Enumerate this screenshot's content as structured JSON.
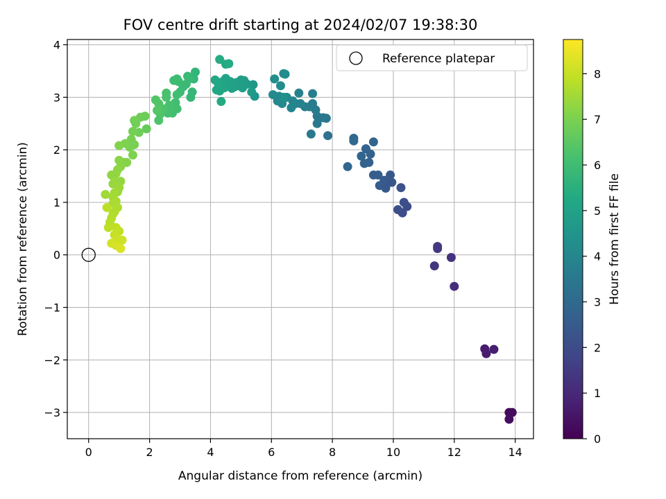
{
  "chart_data": {
    "type": "scatter",
    "title": "FOV centre drift starting at 2024/02/07 19:38:30",
    "xlabel": "Angular distance from reference (arcmin)",
    "ylabel": "Rotation from reference (arcmin)",
    "xlim": [
      -0.7,
      14.6
    ],
    "ylim": [
      -3.5,
      4.1
    ],
    "xticks": [
      0,
      2,
      4,
      6,
      8,
      10,
      12,
      14
    ],
    "yticks": [
      -3,
      -2,
      -1,
      0,
      1,
      2,
      3,
      4
    ],
    "grid": true,
    "legend": {
      "placement": "top-right",
      "label": "Reference platepar"
    },
    "reference_point": {
      "x": 0,
      "y": 0
    },
    "colorbar": {
      "label": "Hours from first FF file",
      "colormap": "viridis",
      "range": [
        0,
        8.75
      ],
      "ticks": [
        0,
        1,
        2,
        3,
        4,
        5,
        6,
        7,
        8
      ]
    },
    "points": [
      {
        "x": 13.8,
        "y": -3.0,
        "c": 0.2
      },
      {
        "x": 13.9,
        "y": -3.0,
        "c": 0.25
      },
      {
        "x": 13.8,
        "y": -3.13,
        "c": 0.3
      },
      {
        "x": 13.0,
        "y": -1.79,
        "c": 0.65
      },
      {
        "x": 13.05,
        "y": -1.88,
        "c": 0.7
      },
      {
        "x": 13.3,
        "y": -1.8,
        "c": 0.75
      },
      {
        "x": 12.0,
        "y": -0.6,
        "c": 1.15
      },
      {
        "x": 11.9,
        "y": -0.05,
        "c": 1.25
      },
      {
        "x": 11.35,
        "y": -0.21,
        "c": 1.35
      },
      {
        "x": 11.45,
        "y": 0.12,
        "c": 1.4
      },
      {
        "x": 11.45,
        "y": 0.16,
        "c": 1.45
      },
      {
        "x": 10.3,
        "y": 0.8,
        "c": 2.0
      },
      {
        "x": 10.45,
        "y": 0.92,
        "c": 2.05
      },
      {
        "x": 10.35,
        "y": 1.0,
        "c": 2.1
      },
      {
        "x": 10.15,
        "y": 0.86,
        "c": 2.1
      },
      {
        "x": 10.25,
        "y": 1.28,
        "c": 2.2
      },
      {
        "x": 9.95,
        "y": 1.38,
        "c": 2.3
      },
      {
        "x": 9.75,
        "y": 1.3,
        "c": 2.35
      },
      {
        "x": 9.9,
        "y": 1.52,
        "c": 2.4
      },
      {
        "x": 9.7,
        "y": 1.42,
        "c": 2.45
      },
      {
        "x": 9.55,
        "y": 1.32,
        "c": 2.5
      },
      {
        "x": 9.5,
        "y": 1.52,
        "c": 2.55
      },
      {
        "x": 9.35,
        "y": 1.52,
        "c": 2.6
      },
      {
        "x": 9.75,
        "y": 1.27,
        "c": 2.4
      },
      {
        "x": 9.2,
        "y": 1.76,
        "c": 2.7
      },
      {
        "x": 9.05,
        "y": 1.74,
        "c": 2.75
      },
      {
        "x": 9.25,
        "y": 1.92,
        "c": 2.75
      },
      {
        "x": 9.1,
        "y": 2.02,
        "c": 2.8
      },
      {
        "x": 8.95,
        "y": 1.88,
        "c": 2.85
      },
      {
        "x": 9.35,
        "y": 2.15,
        "c": 2.85
      },
      {
        "x": 8.7,
        "y": 2.17,
        "c": 2.95
      },
      {
        "x": 8.7,
        "y": 2.22,
        "c": 3.0
      },
      {
        "x": 8.5,
        "y": 1.68,
        "c": 2.9
      },
      {
        "x": 7.85,
        "y": 2.27,
        "c": 3.3
      },
      {
        "x": 7.8,
        "y": 2.6,
        "c": 3.4
      },
      {
        "x": 7.7,
        "y": 2.61,
        "c": 3.45
      },
      {
        "x": 7.5,
        "y": 2.5,
        "c": 3.5
      },
      {
        "x": 7.5,
        "y": 2.64,
        "c": 3.55
      },
      {
        "x": 7.3,
        "y": 2.3,
        "c": 3.55
      },
      {
        "x": 7.45,
        "y": 2.76,
        "c": 3.6
      },
      {
        "x": 7.35,
        "y": 2.88,
        "c": 3.65
      },
      {
        "x": 7.25,
        "y": 2.82,
        "c": 3.7
      },
      {
        "x": 7.1,
        "y": 2.82,
        "c": 3.75
      },
      {
        "x": 7.35,
        "y": 3.07,
        "c": 3.75
      },
      {
        "x": 6.9,
        "y": 3.08,
        "c": 3.8
      },
      {
        "x": 6.95,
        "y": 2.88,
        "c": 3.85
      },
      {
        "x": 6.8,
        "y": 2.88,
        "c": 3.9
      },
      {
        "x": 6.65,
        "y": 2.8,
        "c": 3.95
      },
      {
        "x": 6.7,
        "y": 2.93,
        "c": 3.95
      },
      {
        "x": 6.5,
        "y": 3.0,
        "c": 4.0
      },
      {
        "x": 6.35,
        "y": 2.88,
        "c": 4.05
      },
      {
        "x": 6.25,
        "y": 3.02,
        "c": 4.1
      },
      {
        "x": 6.2,
        "y": 2.93,
        "c": 4.1
      },
      {
        "x": 6.05,
        "y": 3.05,
        "c": 4.15
      },
      {
        "x": 6.3,
        "y": 3.22,
        "c": 4.2
      },
      {
        "x": 6.4,
        "y": 3.45,
        "c": 4.25
      },
      {
        "x": 6.45,
        "y": 3.44,
        "c": 4.25
      },
      {
        "x": 6.1,
        "y": 3.35,
        "c": 4.3
      },
      {
        "x": 6.4,
        "y": 3.0,
        "c": 4.3
      },
      {
        "x": 5.45,
        "y": 3.02,
        "c": 4.6
      },
      {
        "x": 5.4,
        "y": 3.24,
        "c": 4.65
      },
      {
        "x": 5.35,
        "y": 3.1,
        "c": 4.7
      },
      {
        "x": 5.2,
        "y": 3.25,
        "c": 4.75
      },
      {
        "x": 5.1,
        "y": 3.32,
        "c": 4.8
      },
      {
        "x": 5.0,
        "y": 3.33,
        "c": 4.85
      },
      {
        "x": 5.05,
        "y": 3.18,
        "c": 4.85
      },
      {
        "x": 4.95,
        "y": 3.22,
        "c": 4.9
      },
      {
        "x": 4.85,
        "y": 3.28,
        "c": 4.95
      },
      {
        "x": 4.8,
        "y": 3.2,
        "c": 4.95
      },
      {
        "x": 4.7,
        "y": 3.17,
        "c": 5.0
      },
      {
        "x": 4.65,
        "y": 3.3,
        "c": 5.0
      },
      {
        "x": 4.55,
        "y": 3.25,
        "c": 5.05
      },
      {
        "x": 4.5,
        "y": 3.36,
        "c": 5.1
      },
      {
        "x": 4.45,
        "y": 3.18,
        "c": 5.1
      },
      {
        "x": 4.4,
        "y": 3.3,
        "c": 5.15
      },
      {
        "x": 4.35,
        "y": 3.22,
        "c": 5.15
      },
      {
        "x": 4.3,
        "y": 3.12,
        "c": 5.2
      },
      {
        "x": 4.2,
        "y": 3.14,
        "c": 5.2
      },
      {
        "x": 4.15,
        "y": 3.33,
        "c": 5.25
      },
      {
        "x": 4.25,
        "y": 3.27,
        "c": 5.25
      },
      {
        "x": 4.5,
        "y": 3.63,
        "c": 5.3
      },
      {
        "x": 4.6,
        "y": 3.64,
        "c": 5.35
      },
      {
        "x": 4.3,
        "y": 3.72,
        "c": 5.35
      },
      {
        "x": 4.35,
        "y": 2.92,
        "c": 5.3
      },
      {
        "x": 3.5,
        "y": 3.48,
        "c": 5.7
      },
      {
        "x": 3.45,
        "y": 3.35,
        "c": 5.75
      },
      {
        "x": 3.4,
        "y": 3.1,
        "c": 5.8
      },
      {
        "x": 3.35,
        "y": 3.0,
        "c": 5.8
      },
      {
        "x": 3.3,
        "y": 3.35,
        "c": 5.85
      },
      {
        "x": 3.25,
        "y": 3.4,
        "c": 5.85
      },
      {
        "x": 3.2,
        "y": 3.25,
        "c": 5.9
      },
      {
        "x": 3.1,
        "y": 3.2,
        "c": 5.9
      },
      {
        "x": 3.0,
        "y": 3.1,
        "c": 5.95
      },
      {
        "x": 2.95,
        "y": 3.3,
        "c": 5.95
      },
      {
        "x": 2.9,
        "y": 3.35,
        "c": 6.0
      },
      {
        "x": 2.8,
        "y": 3.32,
        "c": 6.0
      },
      {
        "x": 2.9,
        "y": 3.05,
        "c": 6.05
      },
      {
        "x": 2.85,
        "y": 2.9,
        "c": 6.05
      },
      {
        "x": 2.9,
        "y": 2.78,
        "c": 6.1
      },
      {
        "x": 2.75,
        "y": 2.7,
        "c": 6.1
      },
      {
        "x": 2.65,
        "y": 2.85,
        "c": 6.15
      },
      {
        "x": 2.6,
        "y": 2.7,
        "c": 6.15
      },
      {
        "x": 2.55,
        "y": 3.0,
        "c": 6.2
      },
      {
        "x": 2.55,
        "y": 3.08,
        "c": 6.2
      },
      {
        "x": 2.45,
        "y": 2.78,
        "c": 6.25
      },
      {
        "x": 2.35,
        "y": 2.68,
        "c": 6.3
      },
      {
        "x": 2.3,
        "y": 2.56,
        "c": 6.3
      },
      {
        "x": 2.3,
        "y": 2.88,
        "c": 6.35
      },
      {
        "x": 2.2,
        "y": 2.95,
        "c": 6.35
      },
      {
        "x": 2.25,
        "y": 2.75,
        "c": 6.4
      },
      {
        "x": 1.9,
        "y": 2.4,
        "c": 6.7
      },
      {
        "x": 1.85,
        "y": 2.64,
        "c": 6.75
      },
      {
        "x": 1.7,
        "y": 2.62,
        "c": 6.8
      },
      {
        "x": 1.65,
        "y": 2.33,
        "c": 6.8
      },
      {
        "x": 1.55,
        "y": 2.5,
        "c": 6.85
      },
      {
        "x": 1.5,
        "y": 2.56,
        "c": 6.85
      },
      {
        "x": 1.45,
        "y": 2.35,
        "c": 6.9
      },
      {
        "x": 1.4,
        "y": 2.2,
        "c": 6.95
      },
      {
        "x": 1.5,
        "y": 2.1,
        "c": 6.95
      },
      {
        "x": 1.35,
        "y": 2.05,
        "c": 7.0
      },
      {
        "x": 1.2,
        "y": 2.12,
        "c": 7.05
      },
      {
        "x": 1.0,
        "y": 2.08,
        "c": 7.1
      },
      {
        "x": 1.45,
        "y": 1.9,
        "c": 7.05
      },
      {
        "x": 1.15,
        "y": 1.76,
        "c": 7.15
      },
      {
        "x": 1.25,
        "y": 1.76,
        "c": 7.15
      },
      {
        "x": 1.0,
        "y": 1.8,
        "c": 7.2
      },
      {
        "x": 1.05,
        "y": 1.68,
        "c": 7.2
      },
      {
        "x": 0.95,
        "y": 1.62,
        "c": 7.25
      },
      {
        "x": 0.9,
        "y": 1.55,
        "c": 7.3
      },
      {
        "x": 0.75,
        "y": 1.52,
        "c": 7.3
      },
      {
        "x": 0.85,
        "y": 1.4,
        "c": 7.35
      },
      {
        "x": 1.05,
        "y": 1.4,
        "c": 7.35
      },
      {
        "x": 0.8,
        "y": 1.35,
        "c": 7.4
      },
      {
        "x": 1.0,
        "y": 1.28,
        "c": 7.45
      },
      {
        "x": 0.95,
        "y": 1.2,
        "c": 7.45
      },
      {
        "x": 0.85,
        "y": 1.18,
        "c": 7.5
      },
      {
        "x": 0.55,
        "y": 1.15,
        "c": 7.5
      },
      {
        "x": 0.8,
        "y": 1.1,
        "c": 7.55
      },
      {
        "x": 0.9,
        "y": 1.02,
        "c": 7.6
      },
      {
        "x": 0.8,
        "y": 0.98,
        "c": 7.6
      },
      {
        "x": 0.95,
        "y": 0.9,
        "c": 7.65
      },
      {
        "x": 0.85,
        "y": 0.82,
        "c": 7.7
      },
      {
        "x": 0.8,
        "y": 0.78,
        "c": 7.7
      },
      {
        "x": 0.75,
        "y": 0.7,
        "c": 7.75
      },
      {
        "x": 0.7,
        "y": 0.62,
        "c": 7.8
      },
      {
        "x": 0.65,
        "y": 0.52,
        "c": 7.85
      },
      {
        "x": 0.9,
        "y": 0.52,
        "c": 7.9
      },
      {
        "x": 1.0,
        "y": 0.45,
        "c": 7.95
      },
      {
        "x": 0.85,
        "y": 0.38,
        "c": 8.0
      },
      {
        "x": 0.95,
        "y": 0.3,
        "c": 8.05
      },
      {
        "x": 1.1,
        "y": 0.28,
        "c": 8.1
      },
      {
        "x": 0.75,
        "y": 0.22,
        "c": 8.15
      },
      {
        "x": 0.9,
        "y": 0.18,
        "c": 8.2
      },
      {
        "x": 1.05,
        "y": 0.12,
        "c": 8.3
      },
      {
        "x": 0.6,
        "y": 0.9,
        "c": 7.85
      }
    ]
  }
}
